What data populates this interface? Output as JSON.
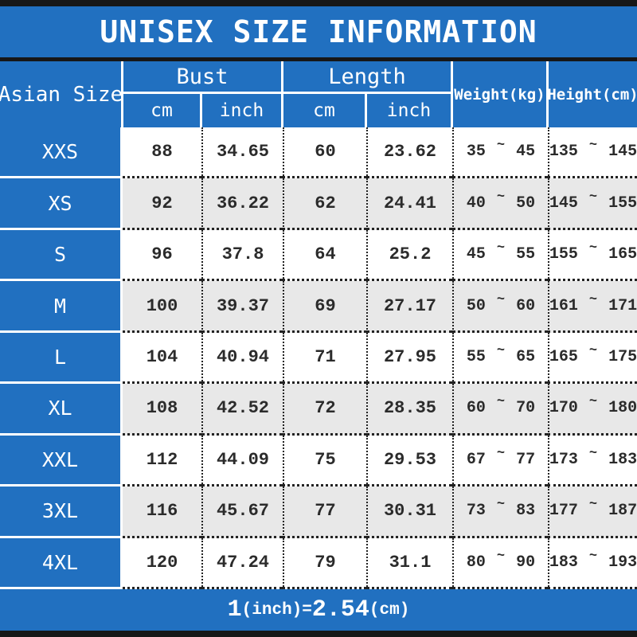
{
  "colors": {
    "blue": "#2170c0",
    "alt_row": "#e8e8e8",
    "bar": "#171717",
    "text": "#2b2b2b"
  },
  "title": "UNISEX SIZE INFORMATION",
  "header": {
    "asian_size": "Asian Size",
    "bust": "Bust",
    "length": "Length",
    "weight": "Weight(kg)",
    "height": "Height(cm)",
    "cm": "cm",
    "inch": "inch"
  },
  "tilde": "~",
  "rows": [
    {
      "size": "XXS",
      "bust_cm": "88",
      "bust_in": "34.65",
      "len_cm": "60",
      "len_in": "23.62",
      "weight": [
        "35",
        "45"
      ],
      "height": [
        "135",
        "145"
      ]
    },
    {
      "size": "XS",
      "bust_cm": "92",
      "bust_in": "36.22",
      "len_cm": "62",
      "len_in": "24.41",
      "weight": [
        "40",
        "50"
      ],
      "height": [
        "145",
        "155"
      ]
    },
    {
      "size": "S",
      "bust_cm": "96",
      "bust_in": "37.8",
      "len_cm": "64",
      "len_in": "25.2",
      "weight": [
        "45",
        "55"
      ],
      "height": [
        "155",
        "165"
      ]
    },
    {
      "size": "M",
      "bust_cm": "100",
      "bust_in": "39.37",
      "len_cm": "69",
      "len_in": "27.17",
      "weight": [
        "50",
        "60"
      ],
      "height": [
        "161",
        "171"
      ]
    },
    {
      "size": "L",
      "bust_cm": "104",
      "bust_in": "40.94",
      "len_cm": "71",
      "len_in": "27.95",
      "weight": [
        "55",
        "65"
      ],
      "height": [
        "165",
        "175"
      ]
    },
    {
      "size": "XL",
      "bust_cm": "108",
      "bust_in": "42.52",
      "len_cm": "72",
      "len_in": "28.35",
      "weight": [
        "60",
        "70"
      ],
      "height": [
        "170",
        "180"
      ]
    },
    {
      "size": "XXL",
      "bust_cm": "112",
      "bust_in": "44.09",
      "len_cm": "75",
      "len_in": "29.53",
      "weight": [
        "67",
        "77"
      ],
      "height": [
        "173",
        "183"
      ]
    },
    {
      "size": "3XL",
      "bust_cm": "116",
      "bust_in": "45.67",
      "len_cm": "77",
      "len_in": "30.31",
      "weight": [
        "73",
        "83"
      ],
      "height": [
        "177",
        "187"
      ]
    },
    {
      "size": "4XL",
      "bust_cm": "120",
      "bust_in": "47.24",
      "len_cm": "79",
      "len_in": "31.1",
      "weight": [
        "80",
        "90"
      ],
      "height": [
        "183",
        "193"
      ]
    }
  ],
  "footer": {
    "text": "1(inch)=2.54(cm)",
    "segments": [
      {
        "text": "1",
        "large": true
      },
      {
        "text": "(inch)",
        "large": false
      },
      {
        "text": "=",
        "large": false
      },
      {
        "text": "2.54",
        "large": true
      },
      {
        "text": "(cm)",
        "large": false
      }
    ]
  }
}
